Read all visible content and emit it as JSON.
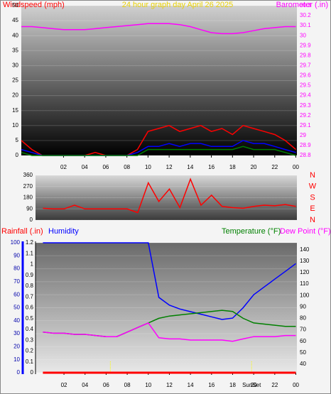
{
  "chart_data": [
    {
      "type": "line",
      "title": "24 hour graph day   April 26 2025",
      "ylabel": "Windspeed (mph)",
      "y2label": "Barometer (.in)",
      "x": [
        -2,
        -1,
        0,
        1,
        2,
        3,
        4,
        5,
        6,
        7,
        8,
        9,
        10,
        11,
        12,
        13,
        14,
        15,
        16,
        17,
        18,
        19,
        20,
        21,
        22,
        23,
        24
      ],
      "series": [
        {
          "color": "#ff0000",
          "values": [
            5,
            2,
            0,
            0,
            0,
            0,
            0,
            1,
            0,
            0,
            0,
            2,
            8,
            9,
            10,
            8,
            9,
            10,
            8,
            9,
            7,
            10,
            9,
            8,
            7,
            5,
            2
          ]
        },
        {
          "color": "#0000ff",
          "values": [
            2,
            1,
            0,
            0,
            0,
            0,
            0,
            0,
            0,
            0,
            0,
            1,
            3,
            3,
            4,
            3,
            4,
            4,
            3,
            3,
            3,
            5,
            4,
            4,
            3,
            2,
            1
          ]
        },
        {
          "color": "#008000",
          "values": [
            1,
            0,
            0,
            0,
            0,
            0,
            0,
            0,
            0,
            0,
            0,
            0,
            2,
            2,
            2,
            2,
            2,
            2,
            2,
            2,
            2,
            3,
            2,
            2,
            2,
            1,
            0
          ]
        },
        {
          "color": "#ff00ff",
          "axis": "y2",
          "values": [
            30.09,
            30.09,
            30.08,
            30.07,
            30.06,
            30.06,
            30.06,
            30.07,
            30.08,
            30.09,
            30.1,
            30.11,
            30.12,
            30.12,
            30.12,
            30.11,
            30.09,
            30.06,
            30.03,
            30.02,
            30.02,
            30.03,
            30.05,
            30.07,
            30.08,
            30.09,
            30.09
          ]
        }
      ],
      "xlim": [
        -2,
        24.1
      ],
      "xticks": [
        {
          "value": 2,
          "label": "02"
        },
        {
          "value": 4,
          "label": "04"
        },
        {
          "value": 6,
          "label": "06"
        },
        {
          "value": 8,
          "label": "08"
        },
        10,
        12,
        14,
        16,
        18,
        20,
        22,
        {
          "value": 24,
          "label": "00"
        }
      ],
      "ylim": [
        0,
        50
      ],
      "yticks": [
        0,
        5,
        10,
        15,
        20,
        25,
        30,
        35,
        40,
        45,
        50
      ],
      "y2lim": [
        28.8,
        30.3
      ],
      "y2ticks": [
        28.8,
        28.9,
        29,
        29.1,
        29.2,
        29.3,
        29.4,
        29.5,
        29.6,
        29.7,
        29.8,
        29.9,
        30,
        30.1,
        30.2,
        30.3
      ],
      "grid": true
    },
    {
      "type": "line",
      "x": [
        0,
        1,
        2,
        3,
        4,
        5,
        6,
        7,
        8,
        9,
        10,
        11,
        12,
        13,
        14,
        15,
        16,
        17,
        18,
        19,
        20,
        21,
        22,
        23,
        24
      ],
      "series": [
        {
          "color": "#ff0000",
          "values": [
            95,
            90,
            90,
            120,
            90,
            90,
            90,
            90,
            90,
            60,
            300,
            150,
            250,
            100,
            330,
            120,
            200,
            110,
            100,
            95,
            110,
            120,
            115,
            125,
            110
          ]
        }
      ],
      "xlim": [
        -0.7,
        24.1
      ],
      "ylim": [
        0,
        360
      ],
      "yticks": [
        0,
        90,
        180,
        270,
        360
      ],
      "y2ticks": [
        {
          "value": 0,
          "label": "N"
        },
        {
          "value": 90,
          "label": "E"
        },
        {
          "value": 180,
          "label": "S"
        },
        {
          "value": 270,
          "label": "W"
        },
        {
          "value": 360,
          "label": "N"
        }
      ],
      "grid": true
    },
    {
      "type": "line",
      "x": [
        0,
        1,
        2,
        3,
        4,
        5,
        6,
        7,
        8,
        9,
        10,
        11,
        12,
        13,
        14,
        15,
        16,
        17,
        18,
        19,
        20,
        21,
        22,
        23,
        24
      ],
      "series": [
        {
          "name": "Humidity",
          "color": "#0000ff",
          "values": [
            100,
            100,
            100,
            100,
            100,
            100,
            100,
            100,
            100,
            100,
            100,
            58,
            52,
            49,
            47,
            45,
            43,
            41,
            42,
            50,
            60,
            66,
            72,
            78,
            84
          ]
        },
        {
          "name": "Temperature (°F)",
          "color": "#008000",
          "axis": "y2",
          "values": [
            68,
            67,
            67,
            66,
            66,
            65,
            64,
            64,
            68,
            72,
            76,
            80,
            82,
            83,
            84,
            85,
            86,
            87,
            86,
            80,
            76,
            75,
            74,
            73,
            73
          ]
        },
        {
          "name": "Dew Point (°F)",
          "color": "#ff00ff",
          "axis": "y2",
          "values": [
            68,
            67,
            67,
            66,
            66,
            65,
            64,
            64,
            68,
            72,
            76,
            63,
            62,
            62,
            61,
            61,
            61,
            61,
            60,
            62,
            64,
            64,
            64,
            65,
            65
          ]
        },
        {
          "name": "Rainfall (.in)",
          "color": "#ff0000",
          "axis": "rain",
          "x": [
            0,
            24
          ],
          "values": [
            0,
            0
          ]
        }
      ],
      "xlim": [
        -0.7,
        24.1
      ],
      "xticks": [
        {
          "value": 2,
          "label": "02"
        },
        {
          "value": 4,
          "label": "04"
        },
        {
          "value": 6,
          "label": "06"
        },
        {
          "value": 8,
          "label": "08"
        },
        10,
        12,
        14,
        16,
        18,
        20,
        22,
        {
          "value": 24,
          "label": "00"
        }
      ],
      "ylim": [
        0,
        100
      ],
      "yticks": [
        0,
        10,
        20,
        30,
        40,
        50,
        60,
        70,
        80,
        90,
        100
      ],
      "rainlim": [
        0,
        1.2
      ],
      "rainticks": [
        0,
        0.1,
        0.2,
        0.3,
        0.4,
        0.5,
        0.6,
        0.7,
        0.8,
        0.9,
        1,
        1.1,
        1.2
      ],
      "y2lim": [
        32.5,
        146
      ],
      "y2ticks": [
        40,
        50,
        60,
        70,
        80,
        90,
        100,
        110,
        120,
        130,
        140
      ],
      "markers": [
        {
          "x": 6.4
        },
        {
          "x": 19.8,
          "label": "SunSet"
        }
      ],
      "grid": true
    }
  ]
}
